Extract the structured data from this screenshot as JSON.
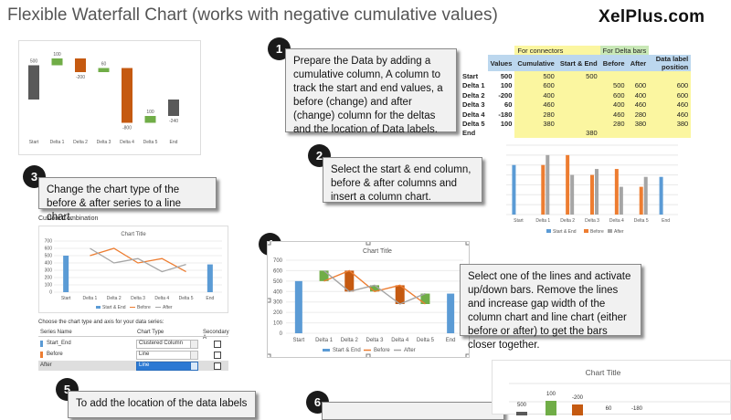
{
  "page": {
    "title": "Flexible Waterfall Chart (works with negative cumulative values)",
    "brand": "XelPlus.com"
  },
  "steps": [
    {
      "num": "1",
      "text": "Prepare the Data by adding a cumulative column, A column to track the start and end values, a before (change) and after (change) column for the deltas and the location of Data labels."
    },
    {
      "num": "2",
      "text": "Select the start & end column, before & after columns and insert a column chart."
    },
    {
      "num": "3",
      "text": "Change the chart type of the before & after series to a line chart."
    },
    {
      "num": "4",
      "text": "Select one of the lines and activate up/down bars. Remove the lines and increase gap width of the column chart and line chart (either before or after) to get the bars closer together."
    },
    {
      "num": "5",
      "text": "To add the location of the data labels"
    },
    {
      "num": "6",
      "text": ""
    }
  ],
  "colors": {
    "start_end": "#5b9bd5",
    "before": "#ed7d31",
    "after": "#a5a5a5",
    "up": "#70ad47",
    "down": "#c55a11",
    "total": "#595959"
  },
  "table": {
    "group_headers": [
      "For connectors",
      "For Delta bars"
    ],
    "headers": [
      "",
      "Values",
      "Cumulative",
      "Start & End",
      "Before",
      "After",
      "Data label position"
    ],
    "rows": [
      [
        "Start",
        "500",
        "500",
        "500",
        "",
        "",
        ""
      ],
      [
        "Delta 1",
        "100",
        "600",
        "",
        "500",
        "600",
        "600"
      ],
      [
        "Delta 2",
        "-200",
        "400",
        "",
        "600",
        "400",
        "600"
      ],
      [
        "Delta 3",
        "60",
        "460",
        "",
        "400",
        "460",
        "460"
      ],
      [
        "Delta 4",
        "-180",
        "280",
        "",
        "460",
        "280",
        "460"
      ],
      [
        "Delta 5",
        "100",
        "380",
        "",
        "280",
        "380",
        "380"
      ],
      [
        "End",
        "",
        "",
        "380",
        "",
        "",
        ""
      ]
    ]
  },
  "chart_data": [
    {
      "id": "waterfall-top-left",
      "type": "bar",
      "categories": [
        "Start",
        "Delta 1",
        "Delta 2",
        "Delta 3",
        "Delta 4",
        "Delta 5",
        "End"
      ],
      "values": [
        500,
        100,
        -200,
        60,
        -800,
        100,
        -240
      ],
      "data_labels": [
        "500",
        "100",
        "-200",
        "60",
        "-800",
        "100",
        "-240"
      ]
    },
    {
      "id": "column-chart-step2",
      "type": "bar",
      "categories": [
        "Start",
        "Delta 1",
        "Delta 2",
        "Delta 3",
        "Delta 4",
        "Delta 5",
        "End"
      ],
      "ylim": [
        0,
        700
      ],
      "series": [
        {
          "name": "Start & End",
          "values": [
            500,
            0,
            0,
            0,
            0,
            0,
            380
          ]
        },
        {
          "name": "Before",
          "values": [
            0,
            500,
            600,
            400,
            460,
            280,
            0
          ]
        },
        {
          "name": "After",
          "values": [
            0,
            600,
            400,
            460,
            280,
            380,
            0
          ]
        }
      ]
    },
    {
      "id": "combo-chart-step3",
      "type": "line",
      "title": "Chart Title",
      "categories": [
        "Start",
        "Delta 1",
        "Delta 2",
        "Delta 3",
        "Delta 4",
        "Delta 5",
        "End"
      ],
      "ylim": [
        0,
        700
      ],
      "series": [
        {
          "name": "Start & End",
          "values": [
            500,
            null,
            null,
            null,
            null,
            null,
            380
          ]
        },
        {
          "name": "Before",
          "values": [
            null,
            500,
            600,
            400,
            460,
            280,
            null
          ]
        },
        {
          "name": "After",
          "values": [
            null,
            600,
            400,
            460,
            280,
            380,
            null
          ]
        }
      ]
    },
    {
      "id": "updown-chart-step4",
      "type": "line",
      "title": "Chart Title",
      "categories": [
        "Start",
        "Delta 1",
        "Delta 2",
        "Delta 3",
        "Delta 4",
        "Delta 5",
        "End"
      ],
      "ylim": [
        0,
        700
      ],
      "yticks": [
        0,
        100,
        200,
        300,
        400,
        500,
        600,
        700
      ],
      "series": [
        {
          "name": "Start & End",
          "values": [
            500,
            null,
            null,
            null,
            null,
            null,
            380
          ]
        },
        {
          "name": "Before",
          "values": [
            null,
            500,
            600,
            400,
            460,
            280,
            null
          ]
        },
        {
          "name": "After",
          "values": [
            null,
            600,
            400,
            460,
            280,
            380,
            null
          ]
        }
      ]
    },
    {
      "id": "partial-chart-bottom",
      "type": "bar",
      "title": "Chart Title",
      "data_labels": [
        "500",
        "100",
        "-200",
        "60",
        "-180"
      ]
    }
  ],
  "dialog": {
    "title": "Custom Combination",
    "mini_chart_title": "Chart Title",
    "prompt": "Choose the chart type and axis for your data series:",
    "col_series": "Series Name",
    "col_type": "Chart Type",
    "col_axis": "Secondary A",
    "rows": [
      {
        "name": "Start_End",
        "type": "Clustered Column"
      },
      {
        "name": "Before",
        "type": "Line"
      },
      {
        "name": "After",
        "type": "Line"
      }
    ]
  },
  "legends": {
    "start_end": "Start & End",
    "before": "Before",
    "after": "After"
  }
}
